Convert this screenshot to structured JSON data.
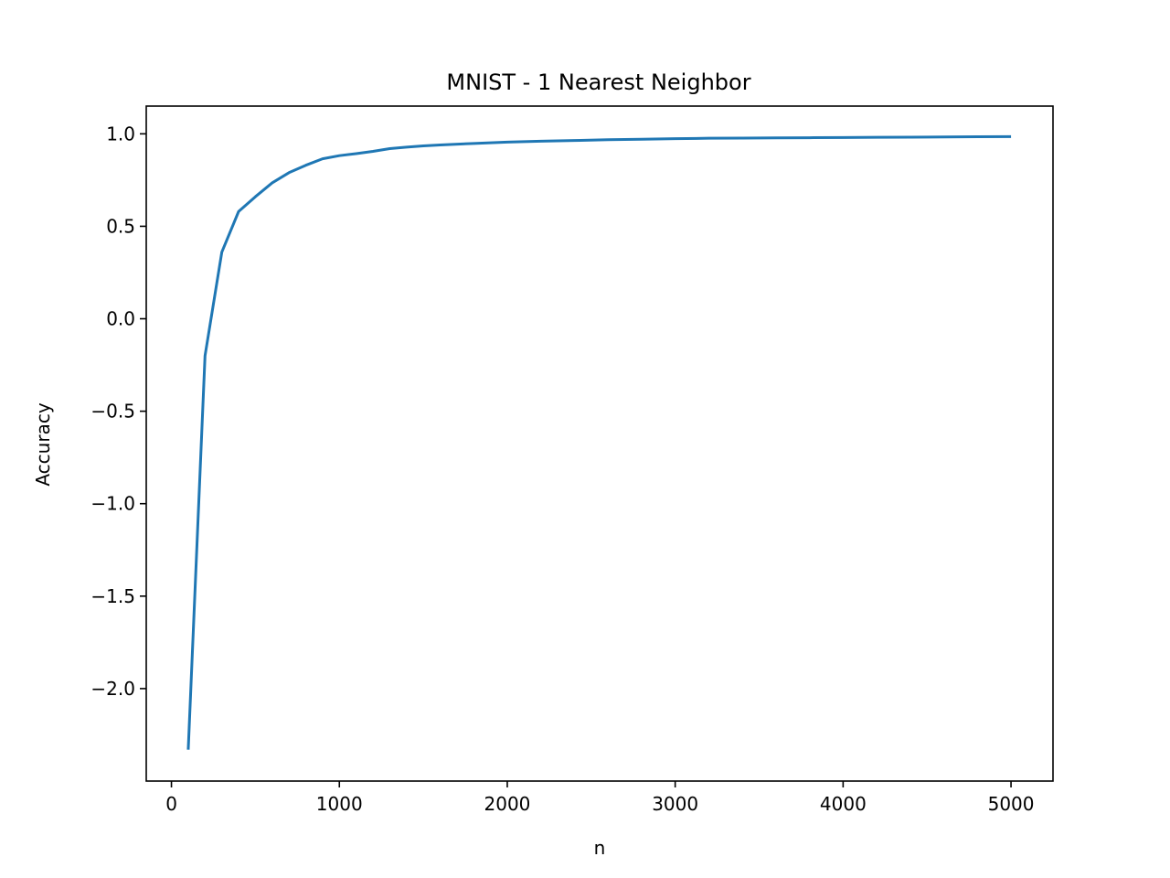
{
  "chart_data": {
    "type": "line",
    "title": "MNIST - 1 Nearest Neighbor",
    "xlabel": "n",
    "ylabel": "Accuracy",
    "xlim": [
      -150,
      5250
    ],
    "ylim": [
      -2.5,
      1.15
    ],
    "xticks": [
      0,
      1000,
      2000,
      3000,
      4000,
      5000
    ],
    "xtick_labels": [
      "0",
      "1000",
      "2000",
      "3000",
      "4000",
      "5000"
    ],
    "yticks": [
      1.0,
      0.5,
      0.0,
      -0.5,
      -1.0,
      -1.5,
      -2.0
    ],
    "ytick_labels": [
      "1.0",
      "0.5",
      "0.0",
      "−0.5",
      "−1.0",
      "−1.5",
      "−2.0"
    ],
    "grid": false,
    "series": [
      {
        "color": "#1f77b4",
        "x": [
          100,
          200,
          300,
          400,
          500,
          600,
          700,
          800,
          900,
          1000,
          1100,
          1200,
          1300,
          1400,
          1500,
          1600,
          1800,
          2000,
          2200,
          2400,
          2600,
          2800,
          3000,
          3200,
          3400,
          3600,
          3800,
          4000,
          4200,
          4400,
          4600,
          4800,
          5000
        ],
        "y": [
          -2.33,
          -0.2,
          0.36,
          0.58,
          0.66,
          0.735,
          0.79,
          0.83,
          0.865,
          0.882,
          0.893,
          0.905,
          0.92,
          0.928,
          0.935,
          0.94,
          0.948,
          0.955,
          0.96,
          0.964,
          0.968,
          0.971,
          0.974,
          0.976,
          0.977,
          0.978,
          0.979,
          0.98,
          0.981,
          0.982,
          0.983,
          0.984,
          0.985
        ]
      }
    ]
  }
}
